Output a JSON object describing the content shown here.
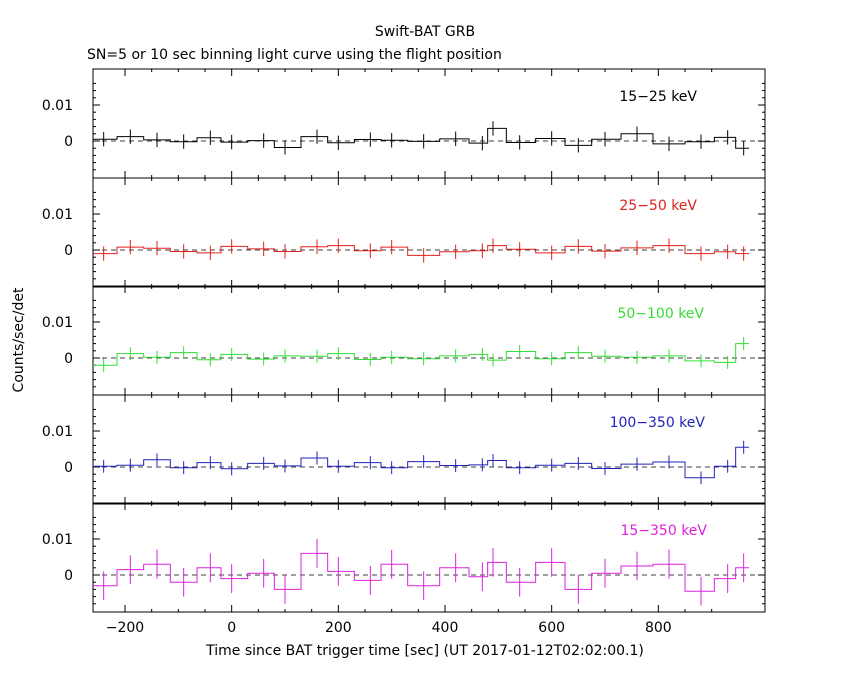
{
  "header": {
    "title": "Swift-BAT GRB",
    "subtitle": "SN=5 or 10 sec binning light curve using the flight position"
  },
  "axes": {
    "ylabel": "Counts/sec/det",
    "xlabel": "Time since BAT trigger time [sec] (UT 2017-01-12T02:02:00.1)"
  },
  "chart_data": [
    {
      "type": "line",
      "panel": "15-25 keV",
      "color": "#000000",
      "xlim": [
        -260,
        1000
      ],
      "ylim": [
        -0.01,
        0.02
      ],
      "yticks": [
        0,
        0.01
      ],
      "ytick_labels": [
        "0",
        "0.01"
      ],
      "series": [
        {
          "name": "15−25 keV",
          "x": [
            -240,
            -190,
            -140,
            -90,
            -40,
            0,
            60,
            100,
            160,
            200,
            260,
            300,
            360,
            420,
            470,
            490,
            540,
            600,
            650,
            700,
            760,
            820,
            880,
            930,
            960
          ],
          "values": [
            0.0005,
            0.0012,
            0.0003,
            -0.0002,
            0.0009,
            -0.0003,
            0.0001,
            -0.0018,
            0.0012,
            -0.0005,
            0.0004,
            0.0002,
            -0.0001,
            0.0006,
            -0.0006,
            0.0035,
            -0.0004,
            0.0007,
            -0.0012,
            0.0005,
            0.002,
            -0.0008,
            -0.0002,
            0.001,
            -0.002
          ],
          "errors": 0.002
        }
      ]
    },
    {
      "type": "line",
      "panel": "25-50 keV",
      "color": "#e0201c",
      "xlim": [
        -260,
        1000
      ],
      "ylim": [
        -0.01,
        0.02
      ],
      "yticks": [
        0,
        0.01
      ],
      "ytick_labels": [
        "0",
        "0.01"
      ],
      "series": [
        {
          "name": "25−50 keV",
          "x": [
            -240,
            -190,
            -140,
            -90,
            -40,
            0,
            60,
            100,
            160,
            200,
            260,
            300,
            360,
            420,
            470,
            490,
            540,
            600,
            650,
            700,
            760,
            820,
            880,
            930,
            960
          ],
          "values": [
            -0.001,
            0.0008,
            0.0005,
            -0.0004,
            -0.0008,
            0.001,
            0.0003,
            -0.0004,
            0.0009,
            0.0012,
            -0.0002,
            0.0008,
            -0.0015,
            -0.0005,
            -0.0002,
            0.0012,
            0.0002,
            -0.0008,
            0.001,
            -0.0003,
            0.0006,
            0.0012,
            -0.001,
            -0.0005,
            -0.001
          ],
          "errors": 0.002
        }
      ]
    },
    {
      "type": "line",
      "panel": "50-100 keV",
      "color": "#33dd33",
      "xlim": [
        -260,
        1000
      ],
      "ylim": [
        -0.01,
        0.02
      ],
      "yticks": [
        0,
        0.01
      ],
      "ytick_labels": [
        "0",
        "0.01"
      ],
      "series": [
        {
          "name": "50−100 keV",
          "x": [
            -240,
            -190,
            -140,
            -90,
            -40,
            0,
            60,
            100,
            160,
            200,
            260,
            300,
            360,
            420,
            470,
            490,
            540,
            600,
            650,
            700,
            760,
            820,
            880,
            930,
            960
          ],
          "values": [
            -0.002,
            0.0012,
            0.0002,
            0.0015,
            -0.0005,
            0.001,
            -0.0003,
            0.0006,
            0.0005,
            0.0012,
            -0.0004,
            0.0002,
            -0.0002,
            0.0006,
            0.001,
            -0.0006,
            0.0018,
            -0.0002,
            0.0015,
            0.0005,
            0.0002,
            0.0006,
            -0.0008,
            -0.0012,
            0.004
          ],
          "errors": 0.0018
        }
      ]
    },
    {
      "type": "line",
      "panel": "100-350 keV",
      "color": "#2222bb",
      "xlim": [
        -260,
        1000
      ],
      "ylim": [
        -0.01,
        0.02
      ],
      "yticks": [
        0,
        0.01
      ],
      "ytick_labels": [
        "0",
        "0.01"
      ],
      "series": [
        {
          "name": "100−350 keV",
          "x": [
            -240,
            -190,
            -140,
            -90,
            -40,
            0,
            60,
            100,
            160,
            200,
            260,
            300,
            360,
            420,
            470,
            490,
            540,
            600,
            650,
            700,
            760,
            820,
            880,
            930,
            960
          ],
          "values": [
            0.0002,
            0.0005,
            0.002,
            -0.0002,
            0.0012,
            -0.0005,
            0.001,
            0.0003,
            0.0025,
            0.0002,
            0.0012,
            -0.0002,
            0.0015,
            0.0004,
            0.0006,
            0.0018,
            -0.0002,
            0.0005,
            0.001,
            -0.0004,
            0.0008,
            0.0014,
            -0.003,
            0.0002,
            0.0055
          ],
          "errors": 0.0018
        }
      ]
    },
    {
      "type": "line",
      "panel": "15-350 keV",
      "color": "#dd22dd",
      "xlim": [
        -260,
        1000
      ],
      "ylim": [
        -0.01,
        0.02
      ],
      "yticks": [
        0,
        0.01
      ],
      "ytick_labels": [
        "0",
        "0.01"
      ],
      "series": [
        {
          "name": "15−350 keV",
          "x": [
            -240,
            -190,
            -140,
            -90,
            -40,
            0,
            60,
            100,
            160,
            200,
            260,
            300,
            360,
            420,
            470,
            490,
            540,
            600,
            650,
            700,
            760,
            820,
            880,
            930,
            960
          ],
          "values": [
            -0.003,
            0.0015,
            0.003,
            -0.002,
            0.002,
            -0.001,
            0.0005,
            -0.004,
            0.006,
            0.001,
            -0.0015,
            0.003,
            -0.003,
            0.002,
            -0.0005,
            0.0035,
            -0.002,
            0.0035,
            -0.004,
            0.0005,
            0.0025,
            0.003,
            -0.0045,
            -0.001,
            0.002
          ],
          "errors": 0.004
        }
      ]
    }
  ],
  "xaxis": {
    "ticks": [
      -200,
      0,
      200,
      400,
      600,
      800
    ],
    "tick_labels": [
      "−200",
      "0",
      "200",
      "400",
      "600",
      "800"
    ]
  }
}
